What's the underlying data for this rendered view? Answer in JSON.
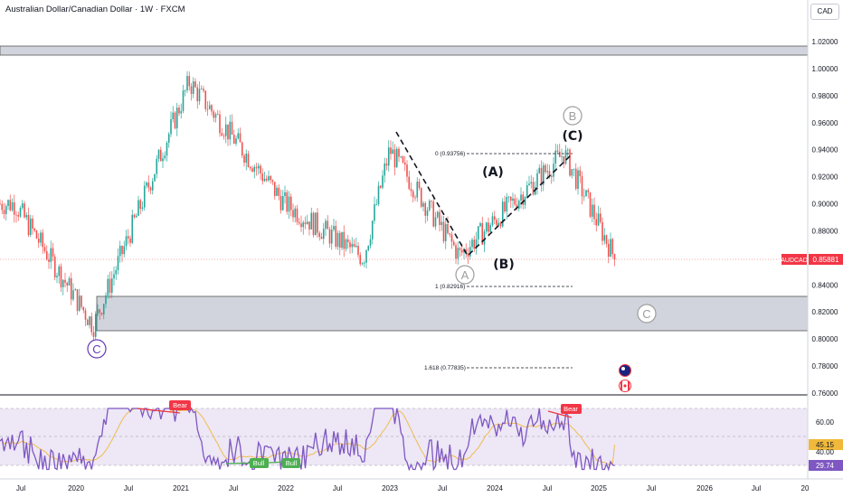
{
  "header": {
    "title": "Australian Dollar/Canadian Dollar · 1W · FXCM",
    "currency": "CAD"
  },
  "colors": {
    "up": "#26a69a",
    "down": "#ef5350",
    "rsi_line": "#7e57c2",
    "rsi_ma": "#f0b93b",
    "rsi_band": "#ede7f6",
    "zone": "#d1d4dc",
    "bear": "#f23645",
    "bull": "#4caf50"
  },
  "chart_data": [
    {
      "type": "candlestick",
      "symbol": "AUDCAD",
      "last_price_label": "0.85881",
      "ylim": [
        0.76,
        1.025
      ],
      "y_ticks": [
        "1.02000",
        "1.00000",
        "0.98000",
        "0.96000",
        "0.94000",
        "0.92000",
        "0.90000",
        "0.88000",
        "0.86000",
        "0.84000",
        "0.82000",
        "0.80000",
        "0.78000",
        "0.76000"
      ],
      "x_ticks": [
        "Jul",
        "2020",
        "Jul",
        "2021",
        "Jul",
        "2022",
        "Jul",
        "2023",
        "Jul",
        "2024",
        "Jul",
        "2025",
        "Jul",
        "2026",
        "Jul",
        "20"
      ],
      "wave_labels": [
        "(A)",
        "(B)",
        "(C)",
        "A",
        "B",
        "C",
        "C"
      ],
      "fib_labels": [
        "0 (0.93756)",
        "1 (0.82916)",
        "1.618 (0.77835)"
      ],
      "key_points": [
        {
          "date": "2019-06",
          "value": 0.9
        },
        {
          "date": "2020-03",
          "value": 0.81
        },
        {
          "date": "2021-02",
          "value": 0.99
        },
        {
          "date": "2022-01",
          "value": 0.9
        },
        {
          "date": "2022-10",
          "value": 0.86
        },
        {
          "date": "2023-01",
          "value": 0.94
        },
        {
          "date": "2023-09",
          "value": 0.862
        },
        {
          "date": "2024-09",
          "value": 0.93756
        },
        {
          "date": "2025-03",
          "value": 0.858
        }
      ]
    },
    {
      "type": "line",
      "name": "RSI",
      "current_values": [
        "45.15",
        "29.74"
      ],
      "y_ticks": [
        "60.00",
        "40.00"
      ],
      "divergence_labels": [
        "Bear",
        "Bear",
        "Bull",
        "Bull"
      ]
    }
  ]
}
